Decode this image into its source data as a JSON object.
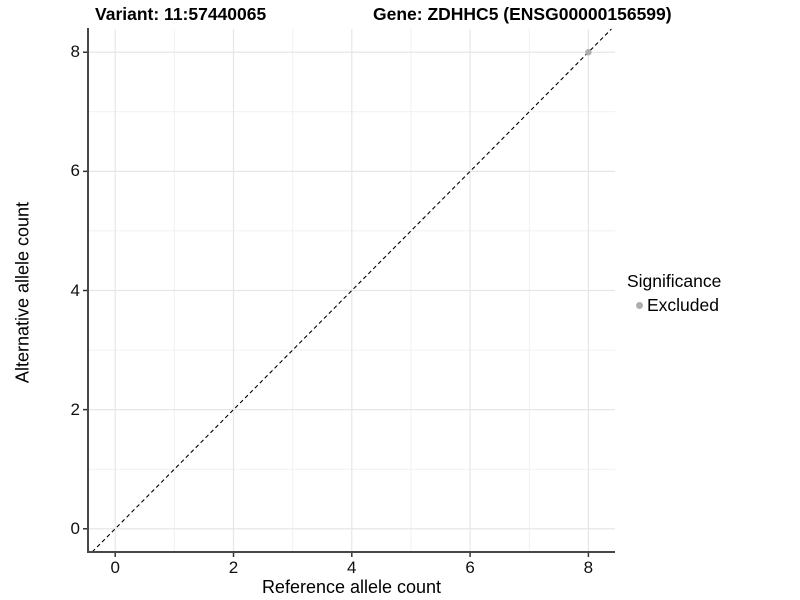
{
  "titles": {
    "variant": "Variant: 11:57440065",
    "gene": "Gene: ZDHHC5 (ENSG00000156599)"
  },
  "axes": {
    "x": {
      "label": "Reference allele count",
      "tick_labels": [
        "0",
        "2",
        "4",
        "6",
        "8"
      ]
    },
    "y": {
      "label": "Alternative allele count",
      "tick_labels": [
        "0",
        "2",
        "4",
        "6",
        "8"
      ]
    }
  },
  "legend": {
    "title": "Significance",
    "items": [
      {
        "label": "Excluded",
        "color": "#aeaeae"
      }
    ]
  },
  "chart_data": {
    "type": "scatter",
    "title": "Variant: 11:57440065   |   Gene: ZDHHC5 (ENSG00000156599)",
    "xlabel": "Reference allele count",
    "ylabel": "Alternative allele count",
    "xlim": [
      -0.46,
      8.45
    ],
    "ylim": [
      -0.39,
      8.39
    ],
    "x_major_ticks": [
      0,
      2,
      4,
      6,
      8
    ],
    "x_minor_ticks": [
      1,
      3,
      5,
      7
    ],
    "y_major_ticks": [
      0,
      2,
      4,
      6,
      8
    ],
    "y_minor_ticks": [
      1,
      3,
      5,
      7
    ],
    "grid": true,
    "legend_position": "right",
    "reference_line": {
      "type": "identity y=x",
      "style": "dashed",
      "color": "#000000"
    },
    "series": [
      {
        "name": "Excluded",
        "color": "#aeaeae",
        "points": [
          {
            "x": 8,
            "y": 8
          }
        ]
      }
    ]
  },
  "colors": {
    "background": "#ffffff",
    "grid_major": "#e6e6e6",
    "grid_minor": "#f1f1f1",
    "axis_line": "#474747",
    "tick_mark": "#333333",
    "text": "#000000",
    "point_excluded": "#aeaeae"
  }
}
